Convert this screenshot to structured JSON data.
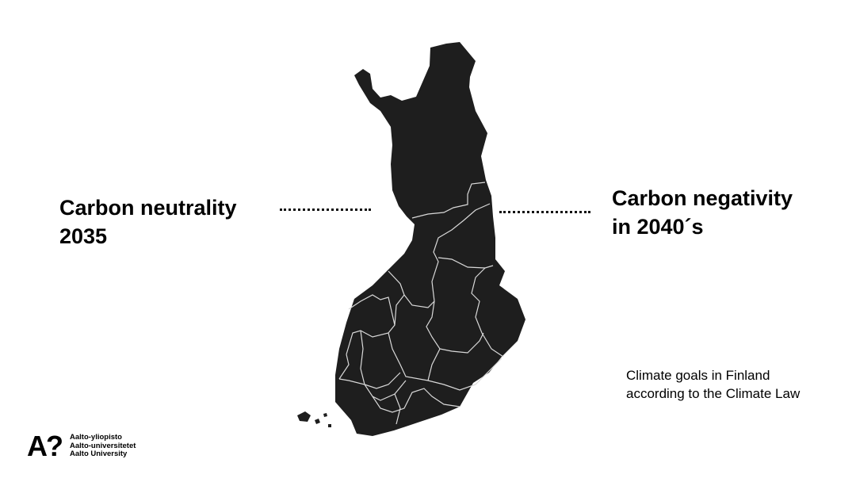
{
  "slide": {
    "left_goal": "Carbon neutrality\n2035",
    "right_goal": "Carbon negativity\nin 2040´s",
    "caption": "Climate goals in Finland\naccording to the Climate Law",
    "map_color": "#1e1e1e",
    "border_color": "#d9d9d9"
  },
  "logo": {
    "mark": "A?",
    "lines": "Aalto-yliopisto\nAalto-universitetet\nAalto University"
  }
}
